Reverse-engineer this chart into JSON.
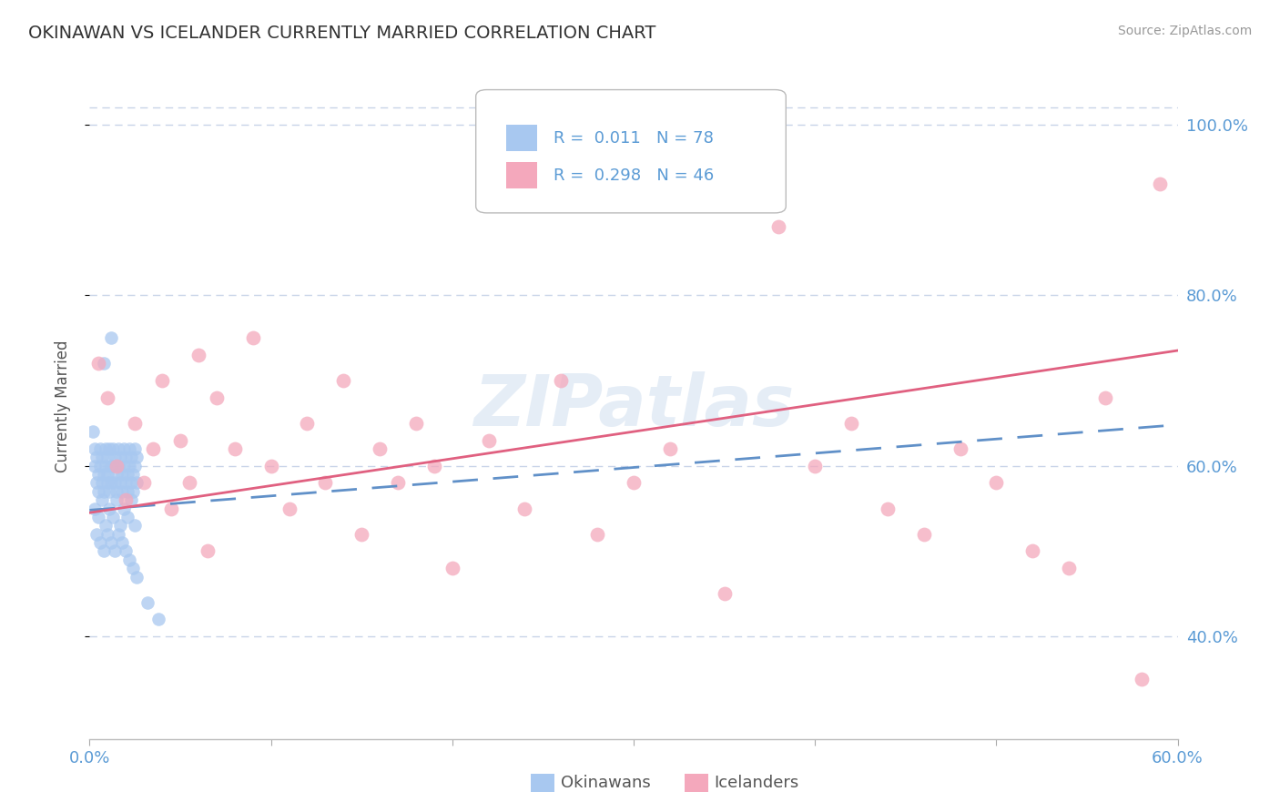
{
  "title": "OKINAWAN VS ICELANDER CURRENTLY MARRIED CORRELATION CHART",
  "source": "Source: ZipAtlas.com",
  "label_color": "#5b9bd5",
  "ylabel": "Currently Married",
  "xlim": [
    0.0,
    0.6
  ],
  "ylim": [
    0.28,
    1.06
  ],
  "yticks_right": [
    0.4,
    0.6,
    0.8,
    1.0
  ],
  "ytick_labels_right": [
    "40.0%",
    "60.0%",
    "80.0%",
    "100.0%"
  ],
  "grid_color": "#c8d4e8",
  "background_color": "#ffffff",
  "okinawan_color": "#a8c8f0",
  "icelander_color": "#f4a8bc",
  "okinawan_trend_color": "#6090c8",
  "icelander_trend_color": "#e06080",
  "watermark": "ZIPatlas",
  "legend_R1": "R =  0.011",
  "legend_N1": "N = 78",
  "legend_R2": "R =  0.298",
  "legend_N2": "N = 46",
  "okinawan_x": [
    0.002,
    0.003,
    0.003,
    0.004,
    0.004,
    0.005,
    0.005,
    0.006,
    0.006,
    0.007,
    0.007,
    0.008,
    0.008,
    0.009,
    0.009,
    0.01,
    0.01,
    0.01,
    0.011,
    0.011,
    0.012,
    0.012,
    0.013,
    0.013,
    0.014,
    0.014,
    0.015,
    0.015,
    0.016,
    0.016,
    0.017,
    0.017,
    0.018,
    0.018,
    0.019,
    0.019,
    0.02,
    0.02,
    0.021,
    0.021,
    0.022,
    0.022,
    0.023,
    0.023,
    0.024,
    0.024,
    0.025,
    0.025,
    0.026,
    0.026,
    0.003,
    0.005,
    0.007,
    0.009,
    0.011,
    0.013,
    0.015,
    0.017,
    0.019,
    0.021,
    0.023,
    0.025,
    0.004,
    0.006,
    0.008,
    0.01,
    0.012,
    0.014,
    0.016,
    0.018,
    0.02,
    0.022,
    0.024,
    0.026,
    0.032,
    0.038,
    0.008,
    0.012
  ],
  "okinawan_y": [
    0.64,
    0.62,
    0.6,
    0.58,
    0.61,
    0.59,
    0.57,
    0.62,
    0.6,
    0.58,
    0.61,
    0.59,
    0.57,
    0.62,
    0.6,
    0.58,
    0.61,
    0.59,
    0.57,
    0.62,
    0.6,
    0.58,
    0.62,
    0.6,
    0.58,
    0.61,
    0.59,
    0.57,
    0.62,
    0.6,
    0.58,
    0.61,
    0.59,
    0.57,
    0.62,
    0.6,
    0.58,
    0.61,
    0.59,
    0.57,
    0.62,
    0.6,
    0.58,
    0.61,
    0.59,
    0.57,
    0.62,
    0.6,
    0.58,
    0.61,
    0.55,
    0.54,
    0.56,
    0.53,
    0.55,
    0.54,
    0.56,
    0.53,
    0.55,
    0.54,
    0.56,
    0.53,
    0.52,
    0.51,
    0.5,
    0.52,
    0.51,
    0.5,
    0.52,
    0.51,
    0.5,
    0.49,
    0.48,
    0.47,
    0.44,
    0.42,
    0.72,
    0.75
  ],
  "icelander_x": [
    0.005,
    0.01,
    0.015,
    0.02,
    0.025,
    0.03,
    0.035,
    0.04,
    0.045,
    0.05,
    0.055,
    0.06,
    0.065,
    0.07,
    0.08,
    0.09,
    0.1,
    0.11,
    0.12,
    0.13,
    0.14,
    0.15,
    0.16,
    0.17,
    0.18,
    0.19,
    0.2,
    0.22,
    0.24,
    0.26,
    0.28,
    0.3,
    0.32,
    0.35,
    0.38,
    0.4,
    0.42,
    0.44,
    0.46,
    0.48,
    0.5,
    0.52,
    0.54,
    0.56,
    0.58,
    0.59
  ],
  "icelander_y": [
    0.72,
    0.68,
    0.6,
    0.56,
    0.65,
    0.58,
    0.62,
    0.7,
    0.55,
    0.63,
    0.58,
    0.73,
    0.5,
    0.68,
    0.62,
    0.75,
    0.6,
    0.55,
    0.65,
    0.58,
    0.7,
    0.52,
    0.62,
    0.58,
    0.65,
    0.6,
    0.48,
    0.63,
    0.55,
    0.7,
    0.52,
    0.58,
    0.62,
    0.45,
    0.88,
    0.6,
    0.65,
    0.55,
    0.52,
    0.62,
    0.58,
    0.5,
    0.48,
    0.68,
    0.35,
    0.93
  ],
  "blue_trend_x0": 0.0,
  "blue_trend_y0": 0.548,
  "blue_trend_x1": 0.6,
  "blue_trend_y1": 0.648,
  "pink_trend_x0": 0.0,
  "pink_trend_y0": 0.545,
  "pink_trend_x1": 0.6,
  "pink_trend_y1": 0.735
}
